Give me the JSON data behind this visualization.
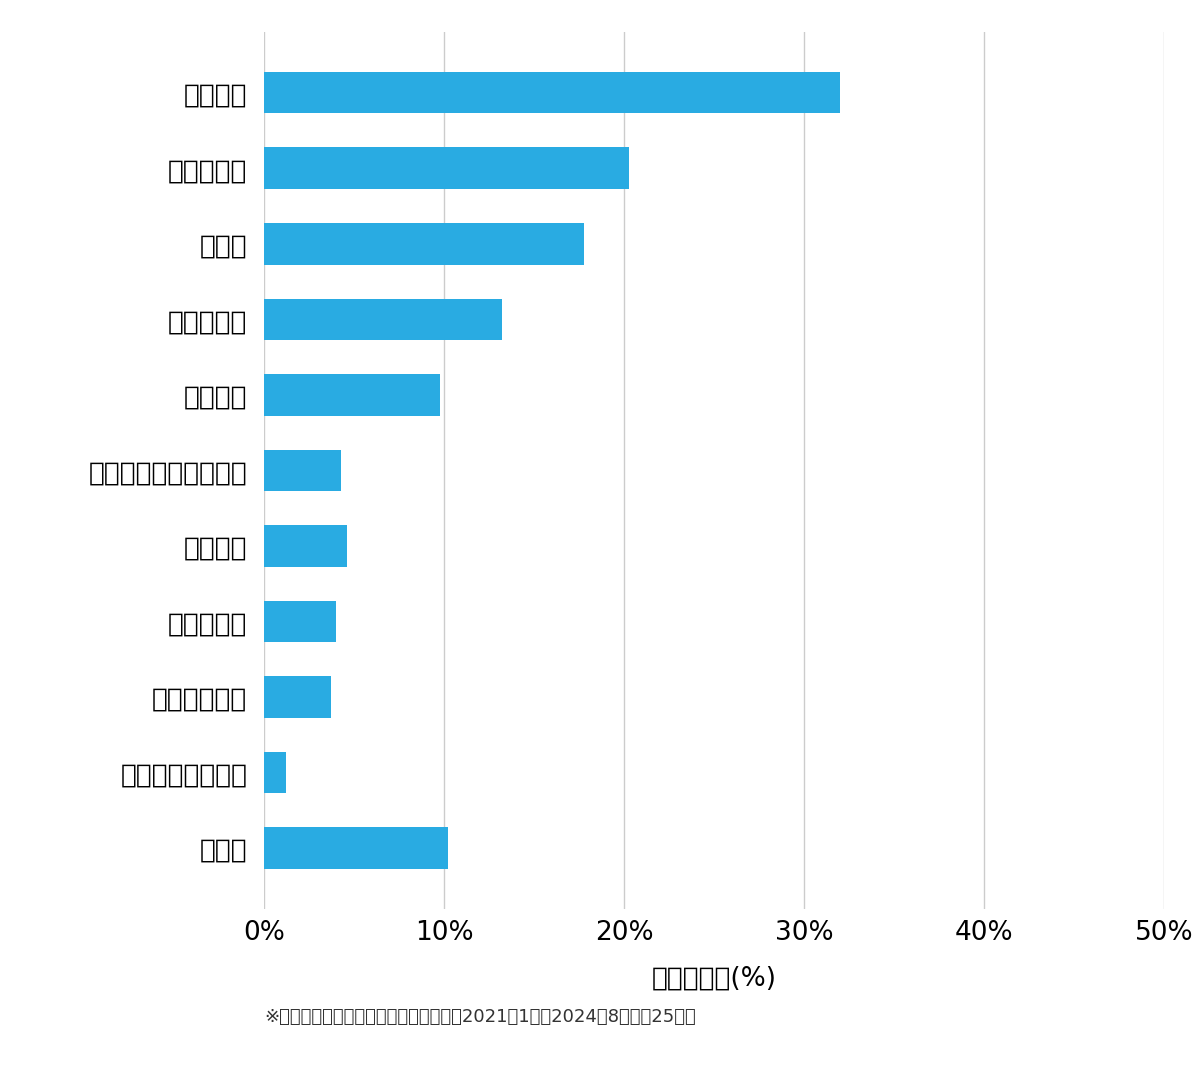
{
  "categories": [
    "その他",
    "スーツケース開鎖",
    "その他鍵作成",
    "玄関鍵作成",
    "金庫開鎖",
    "イモビ付国産車鍵作成",
    "車鍵作成",
    "その他開鎖",
    "車開鎖",
    "玄関鍵交換",
    "玄関開鎖"
  ],
  "values": [
    10.2,
    1.2,
    3.7,
    4.0,
    4.6,
    4.3,
    9.8,
    13.2,
    17.8,
    20.3,
    32.0
  ],
  "bar_color": "#29ABE2",
  "xlabel": "件数の割合(%)",
  "xlim": [
    0,
    50
  ],
  "xticks": [
    0,
    10,
    20,
    30,
    40,
    50
  ],
  "xticklabels": [
    "0%",
    "10%",
    "20%",
    "30%",
    "40%",
    "50%"
  ],
  "footnote": "※弊社受付の案件を対象に集計（期間：2021年1月～2024年8月、訵25件）",
  "background_color": "#ffffff",
  "bar_height": 0.55,
  "grid_color": "#cccccc"
}
